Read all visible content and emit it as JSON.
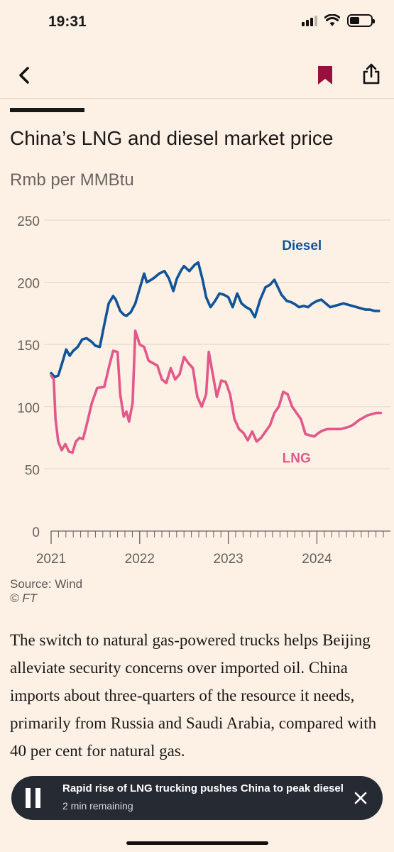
{
  "status_bar": {
    "time": "19:31"
  },
  "nav": {
    "back_icon": "chevron-left-icon",
    "bookmark_icon": "bookmark-icon",
    "share_icon": "share-icon",
    "bookmark_color": "#990f3d"
  },
  "chart_data": {
    "type": "line",
    "title": "China’s LNG and diesel market price",
    "subtitle": "Rmb per MMBtu",
    "ylim": [
      0,
      250
    ],
    "yticks": [
      0,
      50,
      100,
      150,
      200,
      250
    ],
    "xlim": [
      2021,
      2024.75
    ],
    "xticks": [
      "2021",
      "2022",
      "2023",
      "2024"
    ],
    "grid": true,
    "series": [
      {
        "name": "Diesel",
        "color": "#0f5499",
        "x": [
          2021.0,
          2021.04,
          2021.08,
          2021.12,
          2021.17,
          2021.21,
          2021.25,
          2021.3,
          2021.35,
          2021.4,
          2021.46,
          2021.5,
          2021.55,
          2021.6,
          2021.65,
          2021.7,
          2021.73,
          2021.78,
          2021.82,
          2021.85,
          2021.9,
          2021.95,
          2022.0,
          2022.05,
          2022.08,
          2022.13,
          2022.17,
          2022.22,
          2022.28,
          2022.33,
          2022.38,
          2022.42,
          2022.47,
          2022.5,
          2022.56,
          2022.62,
          2022.66,
          2022.71,
          2022.75,
          2022.8,
          2022.85,
          2022.9,
          2022.95,
          2023.0,
          2023.05,
          2023.1,
          2023.15,
          2023.2,
          2023.25,
          2023.3,
          2023.36,
          2023.42,
          2023.47,
          2023.52,
          2023.56,
          2023.6,
          2023.66,
          2023.71,
          2023.76,
          2023.8,
          2023.85,
          2023.9,
          2023.95,
          2024.0,
          2024.05,
          2024.1,
          2024.15,
          2024.2,
          2024.25,
          2024.3,
          2024.35,
          2024.4,
          2024.45,
          2024.5,
          2024.55,
          2024.6,
          2024.65,
          2024.7
        ],
        "values": [
          127,
          124,
          125,
          134,
          146,
          141,
          145,
          148,
          154,
          155,
          152,
          149,
          148,
          166,
          183,
          189,
          186,
          177,
          174,
          173,
          176,
          183,
          195,
          207,
          200,
          202,
          204,
          207,
          209,
          203,
          193,
          203,
          210,
          213,
          209,
          214,
          216,
          202,
          188,
          180,
          185,
          191,
          190,
          188,
          180,
          191,
          183,
          180,
          178,
          172,
          186,
          196,
          198,
          202,
          196,
          190,
          185,
          184,
          182,
          180,
          181,
          180,
          183,
          185,
          186,
          183,
          180,
          181,
          182,
          183,
          182,
          181,
          180,
          179,
          178,
          178,
          177,
          177
        ]
      },
      {
        "name": "LNG",
        "color": "#e3588a",
        "x": [
          2021.0,
          2021.03,
          2021.05,
          2021.08,
          2021.12,
          2021.16,
          2021.2,
          2021.24,
          2021.28,
          2021.32,
          2021.36,
          2021.4,
          2021.46,
          2021.52,
          2021.6,
          2021.65,
          2021.7,
          2021.75,
          2021.78,
          2021.82,
          2021.85,
          2021.88,
          2021.92,
          2021.95,
          2022.0,
          2022.05,
          2022.1,
          2022.15,
          2022.2,
          2022.25,
          2022.3,
          2022.35,
          2022.4,
          2022.45,
          2022.5,
          2022.55,
          2022.6,
          2022.65,
          2022.7,
          2022.75,
          2022.78,
          2022.82,
          2022.87,
          2022.92,
          2022.97,
          2023.02,
          2023.07,
          2023.12,
          2023.17,
          2023.22,
          2023.27,
          2023.32,
          2023.37,
          2023.42,
          2023.47,
          2023.52,
          2023.57,
          2023.62,
          2023.67,
          2023.72,
          2023.77,
          2023.82,
          2023.87,
          2023.92,
          2023.97,
          2024.02,
          2024.07,
          2024.12,
          2024.17,
          2024.22,
          2024.27,
          2024.32,
          2024.37,
          2024.42,
          2024.47,
          2024.52,
          2024.57,
          2024.62,
          2024.67,
          2024.72
        ],
        "values": [
          125,
          122,
          90,
          72,
          65,
          70,
          64,
          63,
          72,
          75,
          74,
          85,
          103,
          115,
          116,
          131,
          145,
          144,
          110,
          92,
          96,
          88,
          103,
          161,
          150,
          148,
          137,
          135,
          133,
          122,
          119,
          131,
          122,
          126,
          140,
          135,
          131,
          108,
          100,
          110,
          144,
          128,
          108,
          121,
          120,
          110,
          90,
          82,
          79,
          73,
          80,
          72,
          75,
          80,
          85,
          95,
          100,
          112,
          110,
          100,
          95,
          90,
          78,
          77,
          76,
          79,
          81,
          82,
          82,
          82,
          82,
          83,
          84,
          86,
          89,
          91,
          93,
          94,
          95,
          95
        ],
        "label_pos": "below"
      }
    ]
  },
  "source": {
    "text": "Source: Wind",
    "copyright": "© FT"
  },
  "article": {
    "paragraph": "The switch to natural gas-powered trucks helps Beijing alleviate security concerns over imported oil. China imports about three-quarters of the resource it needs, primarily from Russia and Saudi Arabia, compared with 40 per cent for natural gas."
  },
  "player": {
    "title": "Rapid rise of LNG trucking pushes China to peak diesel",
    "remaining": "2 min remaining",
    "pause_icon": "pause-icon",
    "close_icon": "close-icon"
  }
}
